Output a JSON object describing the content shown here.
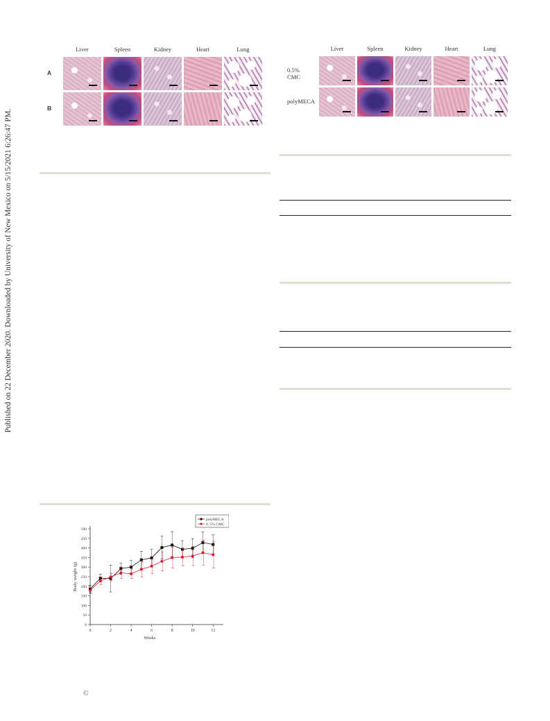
{
  "side_note": "Published on 22 December 2020. Downloaded by University of New Mexico on 5/15/2021 6:26:47 PM.",
  "figure_left": {
    "columns": [
      "Liver",
      "Spleen",
      "Kidney",
      "Heart",
      "Lung"
    ],
    "rows": [
      "A",
      "B"
    ]
  },
  "figure_right": {
    "columns": [
      "Liver",
      "Spleen",
      "Kidney",
      "Heart",
      "Lung"
    ],
    "rows": [
      "0.5% CMC",
      "polyMECA"
    ]
  },
  "colors": {
    "liver": "#e6c3d2",
    "spleen_dark": "#5a3f9a",
    "spleen_edge": "#c84a7c",
    "kidney": "#dbc6d8",
    "heart": "#e8b7c5",
    "lung_bg": "#f5eef3",
    "lung_tissue": "#b98cb8",
    "rule_gray": "#dfe0cf",
    "series_poly": "#111111",
    "series_cmc": "#e0192c"
  },
  "chart_data": {
    "type": "line",
    "xlabel": "Weeks",
    "ylabel": "Body weight (g)",
    "xlim": [
      0,
      13
    ],
    "ylim": [
      0,
      500
    ],
    "xticks": [
      0,
      2,
      4,
      6,
      8,
      10,
      12
    ],
    "yticks": [
      0,
      50,
      100,
      150,
      200,
      250,
      300,
      350,
      400,
      450,
      500
    ],
    "legend_position": "top-right",
    "series": [
      {
        "name": "polyMECA",
        "color": "#111111",
        "marker": "square",
        "x": [
          0,
          1,
          2,
          3,
          4,
          5,
          6,
          7,
          8,
          9,
          10,
          11,
          12
        ],
        "y": [
          185,
          242,
          240,
          292,
          300,
          338,
          348,
          402,
          415,
          393,
          398,
          428,
          418
        ],
        "err": [
          20,
          20,
          70,
          30,
          35,
          45,
          45,
          60,
          70,
          45,
          50,
          55,
          50
        ]
      },
      {
        "name": "0. 5% CMC",
        "color": "#e0192c",
        "marker": "circle",
        "x": [
          0,
          1,
          2,
          3,
          4,
          5,
          6,
          7,
          8,
          9,
          10,
          11,
          12
        ],
        "y": [
          178,
          228,
          248,
          270,
          265,
          288,
          305,
          330,
          350,
          352,
          358,
          375,
          365
        ],
        "err": [
          15,
          20,
          20,
          30,
          25,
          40,
          40,
          50,
          55,
          45,
          50,
          65,
          70
        ]
      }
    ]
  },
  "copyright_symbol": "©"
}
